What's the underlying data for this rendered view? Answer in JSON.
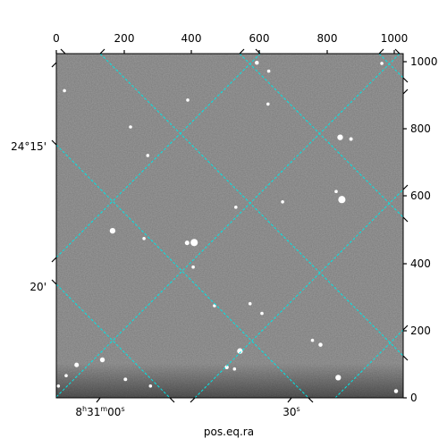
{
  "chart_data": {
    "type": "scatter",
    "xlabel": "pos.eq.ra",
    "ylabel": "",
    "x_pixel_axis": {
      "range": [
        0,
        1024
      ],
      "ticks": [
        0,
        200,
        400,
        600,
        800,
        1000
      ],
      "position": "top"
    },
    "y_pixel_axis": {
      "range": [
        0,
        1024
      ],
      "ticks": [
        0,
        200,
        400,
        600,
        800,
        1000
      ],
      "position": "right"
    },
    "world_axes": {
      "ra_ticks": [
        {
          "h": "8",
          "m": "31",
          "s": "00",
          "label": "8h31m00s"
        },
        {
          "s": "30",
          "label": "30s"
        }
      ],
      "dec_ticks": [
        "24°15'",
        "20'"
      ]
    },
    "grid": true,
    "grid_color": "#00e5e5",
    "background": "grayscale star field",
    "stars": [
      {
        "x": 838,
        "y": 775,
        "size": 3.5
      },
      {
        "x": 870,
        "y": 770,
        "size": 2.2
      },
      {
        "x": 843,
        "y": 590,
        "size": 4.5
      },
      {
        "x": 826,
        "y": 614,
        "size": 2.0
      },
      {
        "x": 627,
        "y": 972,
        "size": 2.0
      },
      {
        "x": 592,
        "y": 997,
        "size": 2.5
      },
      {
        "x": 625,
        "y": 874,
        "size": 2.0
      },
      {
        "x": 407,
        "y": 462,
        "size": 4.5
      },
      {
        "x": 386,
        "y": 461,
        "size": 2.8
      },
      {
        "x": 166,
        "y": 497,
        "size": 3.5
      },
      {
        "x": 530,
        "y": 567,
        "size": 2.0
      },
      {
        "x": 668,
        "y": 583,
        "size": 2.0
      },
      {
        "x": 270,
        "y": 721,
        "size": 2.0
      },
      {
        "x": 542,
        "y": 139,
        "size": 3.5
      },
      {
        "x": 503,
        "y": 91,
        "size": 2.5
      },
      {
        "x": 526,
        "y": 86,
        "size": 2.0
      },
      {
        "x": 832,
        "y": 60,
        "size": 3.5
      },
      {
        "x": 756,
        "y": 171,
        "size": 2.0
      },
      {
        "x": 780,
        "y": 158,
        "size": 2.5
      },
      {
        "x": 136,
        "y": 113,
        "size": 3.0
      },
      {
        "x": 60,
        "y": 98,
        "size": 2.8
      },
      {
        "x": 204,
        "y": 55,
        "size": 2.2
      },
      {
        "x": 278,
        "y": 35,
        "size": 2.0
      },
      {
        "x": 29,
        "y": 66,
        "size": 2.0
      },
      {
        "x": 6,
        "y": 35,
        "size": 2.0
      },
      {
        "x": 572,
        "y": 280,
        "size": 2.0
      },
      {
        "x": 607,
        "y": 251,
        "size": 2.0
      },
      {
        "x": 467,
        "y": 274,
        "size": 2.0
      },
      {
        "x": 404,
        "y": 389,
        "size": 2.0
      },
      {
        "x": 259,
        "y": 474,
        "size": 2.0
      },
      {
        "x": 24,
        "y": 914,
        "size": 2.0
      },
      {
        "x": 219,
        "y": 806,
        "size": 2.0
      },
      {
        "x": 388,
        "y": 886,
        "size": 2.0
      },
      {
        "x": 961,
        "y": 995,
        "size": 2.0
      },
      {
        "x": 1003,
        "y": 20,
        "size": 2.5
      }
    ]
  }
}
